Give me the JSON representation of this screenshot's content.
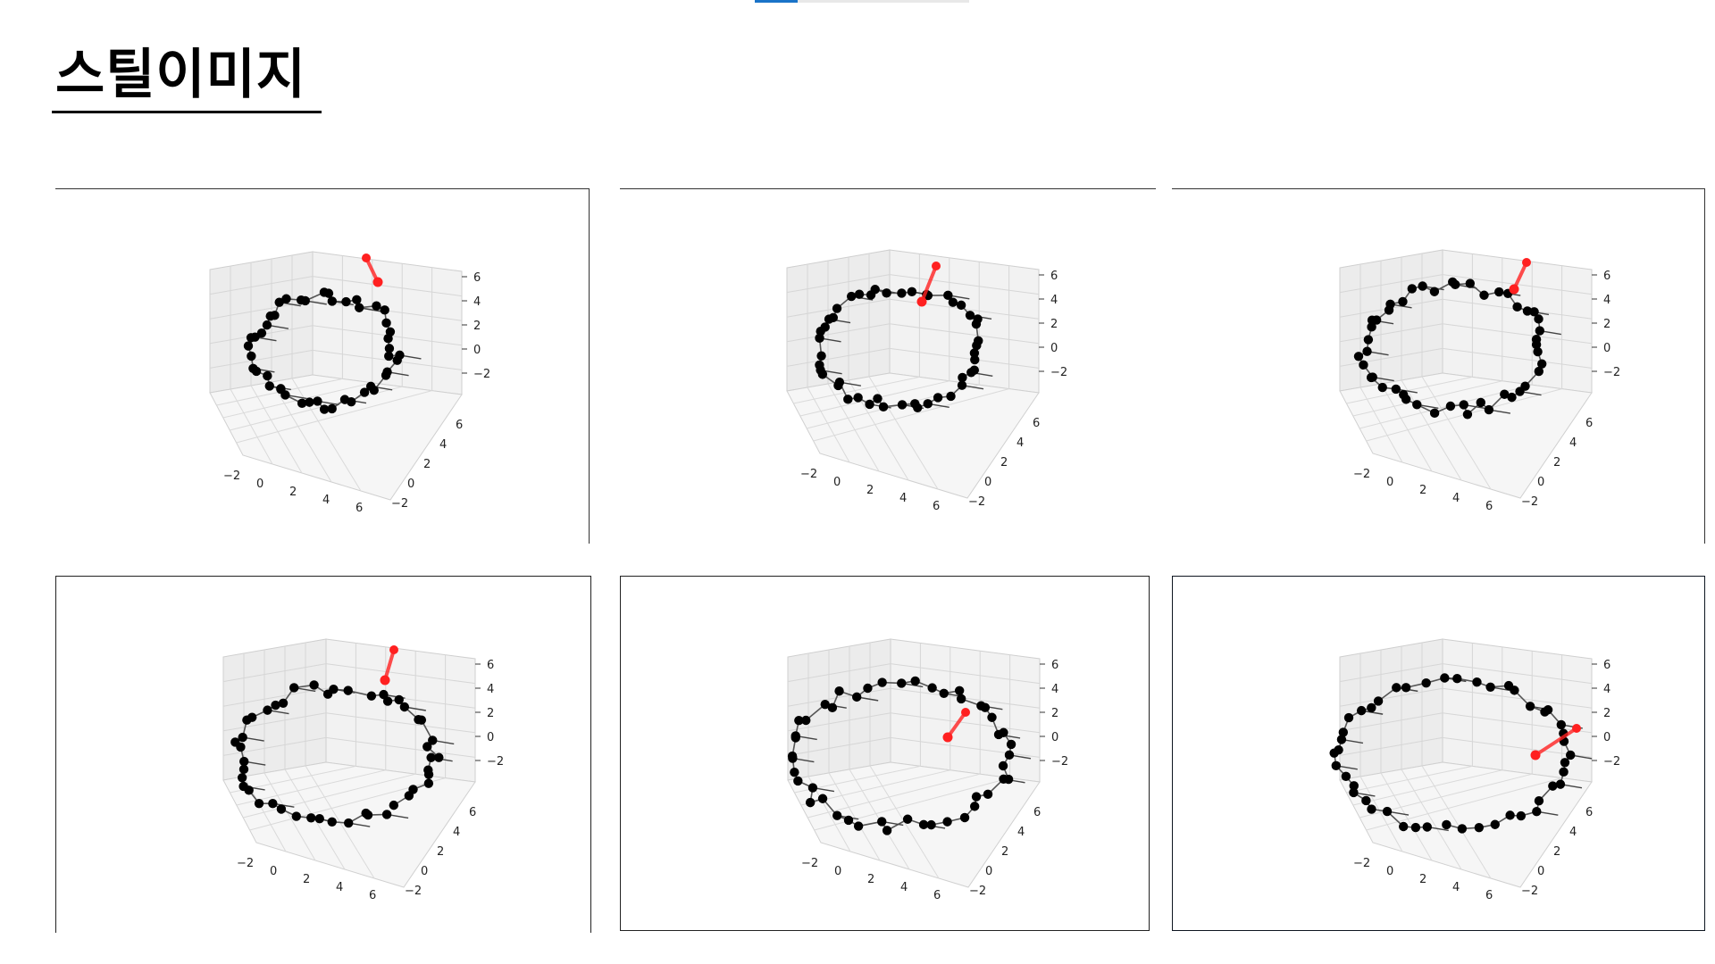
{
  "page": {
    "title": "스틸이미지"
  },
  "panels": [
    {
      "name": "still-image-1",
      "z_ticks": [
        "6",
        "4",
        "2",
        "0",
        "−2"
      ],
      "x_ticks": [
        "−2",
        "0",
        "2",
        "4",
        "6"
      ],
      "y_ticks": [
        "6",
        "4",
        "2",
        "0",
        "−2"
      ]
    },
    {
      "name": "still-image-2",
      "z_ticks": [
        "6",
        "4",
        "2",
        "0",
        "−2"
      ],
      "x_ticks": [
        "−2",
        "0",
        "2",
        "4",
        "6"
      ],
      "y_ticks": [
        "6",
        "4",
        "2",
        "0",
        "−2"
      ]
    },
    {
      "name": "still-image-3",
      "z_ticks": [
        "6",
        "4",
        "2",
        "0",
        "−2"
      ],
      "x_ticks": [
        "−2",
        "0",
        "2",
        "4",
        "6"
      ],
      "y_ticks": [
        "6",
        "4",
        "2",
        "0",
        "−2"
      ]
    },
    {
      "name": "still-image-4",
      "z_ticks": [
        "6",
        "4",
        "2",
        "0",
        "−2"
      ],
      "x_ticks": [
        "−2",
        "0",
        "2",
        "4",
        "6"
      ],
      "y_ticks": [
        "6",
        "4",
        "2",
        "0",
        "−2"
      ]
    },
    {
      "name": "still-image-5",
      "z_ticks": [
        "6",
        "4",
        "2",
        "0",
        "−2"
      ],
      "x_ticks": [
        "−2",
        "0",
        "2",
        "4",
        "6"
      ],
      "y_ticks": [
        "6",
        "4",
        "2",
        "0",
        "−2"
      ]
    },
    {
      "name": "still-image-6",
      "z_ticks": [
        "6",
        "4",
        "2",
        "0",
        "−2"
      ],
      "x_ticks": [
        "−2",
        "0",
        "2",
        "4",
        "6"
      ],
      "y_ticks": [
        "6",
        "4",
        "2",
        "0",
        "−2"
      ]
    }
  ],
  "colors": {
    "marker": "#000000",
    "highlight": "#ff2020",
    "pane": "#f0f0f0"
  }
}
